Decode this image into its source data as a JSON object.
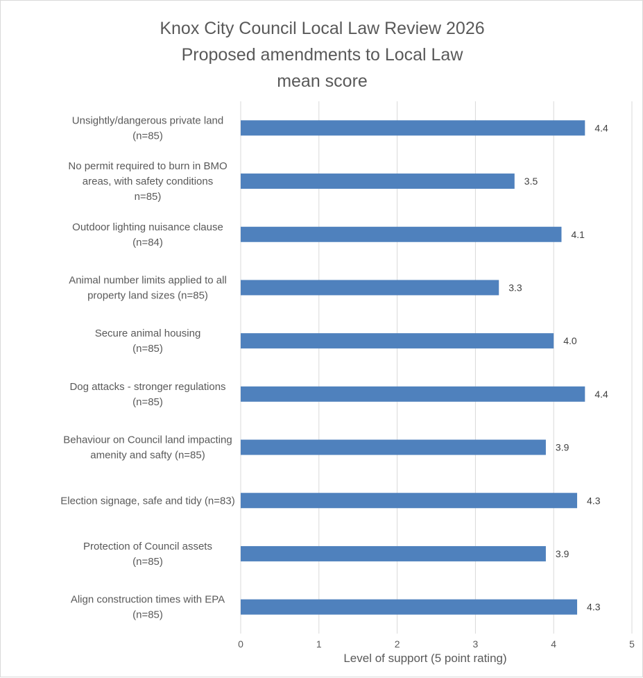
{
  "chart_data": {
    "type": "bar",
    "orientation": "horizontal",
    "title_lines": [
      "Knox City Council Local Law Review 2026",
      "Proposed amendments to Local Law",
      "mean score"
    ],
    "xlabel": "Level of support (5 point rating)",
    "ylabel": "",
    "xlim": [
      0,
      5
    ],
    "x_ticks": [
      0,
      1,
      2,
      3,
      4,
      5
    ],
    "grid": "vertical",
    "legend": "none",
    "bar_color": "#4f81bd",
    "categories": [
      [
        "Unsightly/dangerous private land",
        "(n=85)"
      ],
      [
        "No permit required to burn in BMO",
        "areas, with safety conditions",
        "n=85)"
      ],
      [
        "Outdoor lighting nuisance clause",
        "(n=84)"
      ],
      [
        "Animal number limits applied to all",
        "property land sizes (n=85)"
      ],
      [
        "Secure animal housing",
        "(n=85)"
      ],
      [
        "Dog attacks - stronger regulations",
        "(n=85)"
      ],
      [
        "Behaviour on Council land impacting",
        "amenity and safty (n=85)"
      ],
      [
        "Election signage, safe and tidy (n=83)"
      ],
      [
        "Protection of Council assets",
        "(n=85)"
      ],
      [
        "Align construction times with EPA",
        "(n=85)"
      ]
    ],
    "values": [
      4.4,
      3.5,
      4.1,
      3.3,
      4.0,
      4.4,
      3.9,
      4.3,
      3.9,
      4.3
    ],
    "data_labels": [
      "4.4",
      "3.5",
      "4.1",
      "3.3",
      "4.0",
      "4.4",
      "3.9",
      "4.3",
      "3.9",
      "4.3"
    ]
  }
}
